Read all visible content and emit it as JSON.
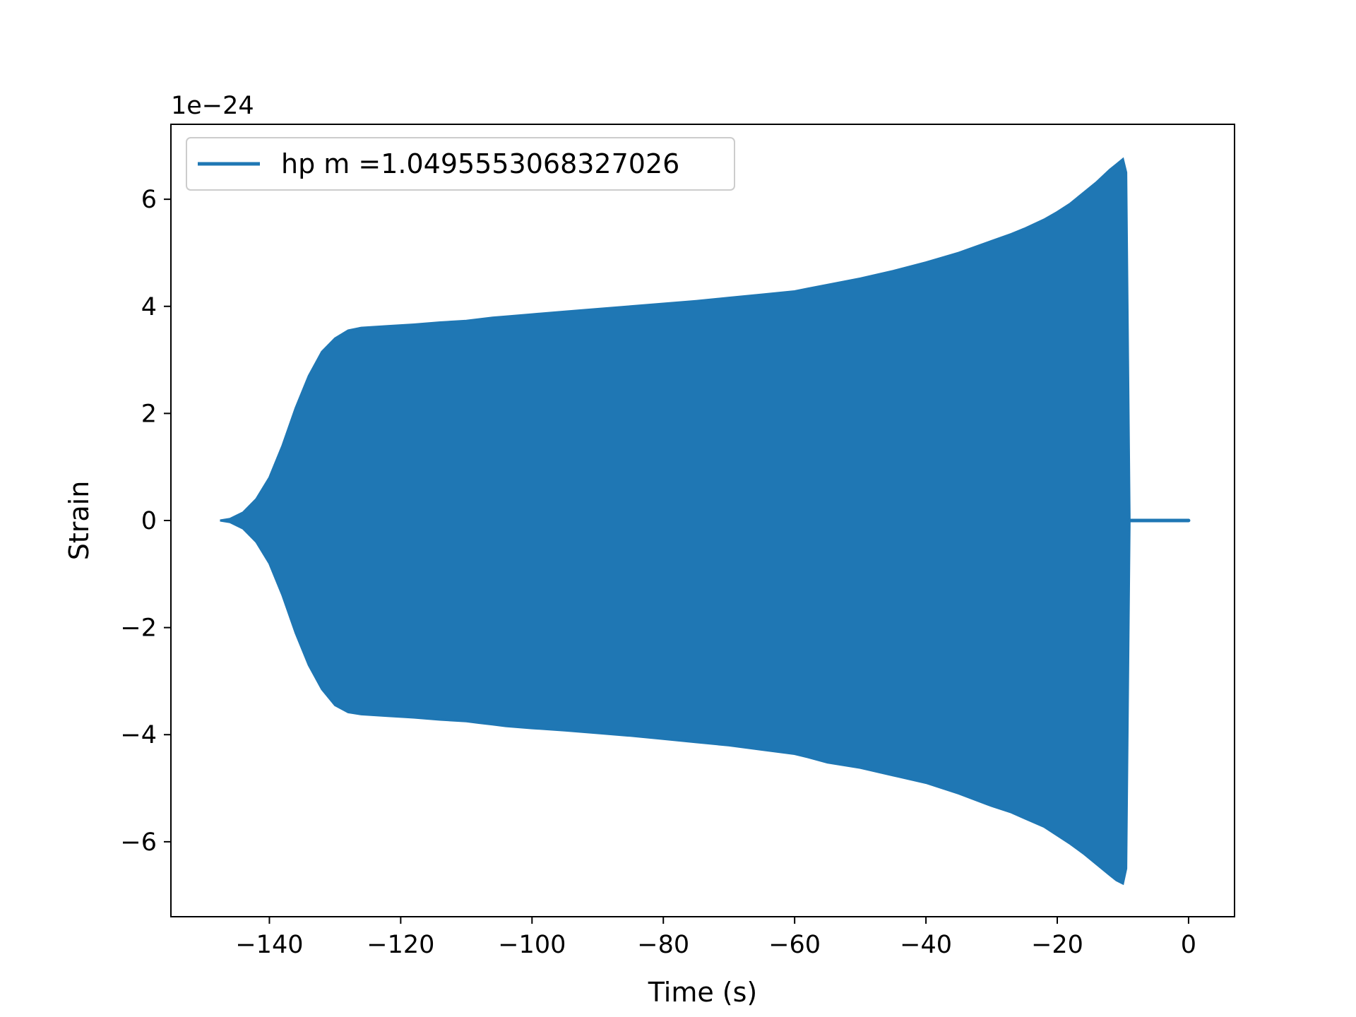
{
  "chart_data": {
    "type": "area",
    "title": "",
    "xlabel": "Time (s)",
    "ylabel": "Strain",
    "y_offset_label": "1e−24",
    "xlim": [
      -155,
      7
    ],
    "ylim": [
      -7.4,
      7.4
    ],
    "xticks": [
      -140,
      -120,
      -100,
      -80,
      -60,
      -40,
      -20,
      0
    ],
    "xtick_labels": [
      "−140",
      "−120",
      "−100",
      "−80",
      "−60",
      "−40",
      "−20",
      "0"
    ],
    "yticks": [
      -6,
      -4,
      -2,
      0,
      2,
      4,
      6
    ],
    "ytick_labels": [
      "−6",
      "−4",
      "−2",
      "0",
      "2",
      "4",
      "6"
    ],
    "grid": false,
    "legend_position": "upper-left",
    "series": [
      {
        "name": "hp m =1.0495553068327026",
        "color": "#1f77b4",
        "envelope": {
          "x": [
            -147.5,
            -146,
            -144,
            -142,
            -140,
            -138,
            -136,
            -134,
            -132,
            -130,
            -128,
            -126,
            -122,
            -118,
            -114,
            -110,
            -108,
            -106,
            -104,
            -100,
            -95,
            -90,
            -85,
            -80,
            -75,
            -70,
            -65,
            -60,
            -58,
            -55,
            -50,
            -45,
            -40,
            -35,
            -30,
            -27,
            -25,
            -22,
            -20,
            -18,
            -16,
            -14,
            -12,
            -11,
            -10,
            -9.5,
            -9
          ],
          "upper": [
            0.0,
            0.03,
            0.15,
            0.4,
            0.8,
            1.4,
            2.1,
            2.7,
            3.15,
            3.4,
            3.55,
            3.6,
            3.63,
            3.66,
            3.7,
            3.73,
            3.76,
            3.79,
            3.81,
            3.85,
            3.9,
            3.95,
            4.0,
            4.05,
            4.1,
            4.16,
            4.22,
            4.28,
            4.33,
            4.4,
            4.52,
            4.66,
            4.82,
            5.0,
            5.22,
            5.35,
            5.45,
            5.62,
            5.76,
            5.92,
            6.12,
            6.32,
            6.55,
            6.65,
            6.75,
            6.5,
            0.1
          ],
          "lower": [
            0.0,
            -0.03,
            -0.15,
            -0.4,
            -0.8,
            -1.4,
            -2.1,
            -2.7,
            -3.15,
            -3.45,
            -3.58,
            -3.62,
            -3.65,
            -3.68,
            -3.72,
            -3.75,
            -3.78,
            -3.81,
            -3.84,
            -3.88,
            -3.92,
            -3.97,
            -4.02,
            -4.08,
            -4.14,
            -4.2,
            -4.28,
            -4.36,
            -4.42,
            -4.52,
            -4.62,
            -4.76,
            -4.9,
            -5.1,
            -5.33,
            -5.45,
            -5.56,
            -5.72,
            -5.88,
            -6.04,
            -6.22,
            -6.42,
            -6.62,
            -6.72,
            -6.78,
            -6.5,
            -0.1
          ]
        },
        "flat_tail": {
          "x": [
            -9,
            0
          ],
          "y": [
            0,
            0
          ]
        }
      }
    ]
  }
}
